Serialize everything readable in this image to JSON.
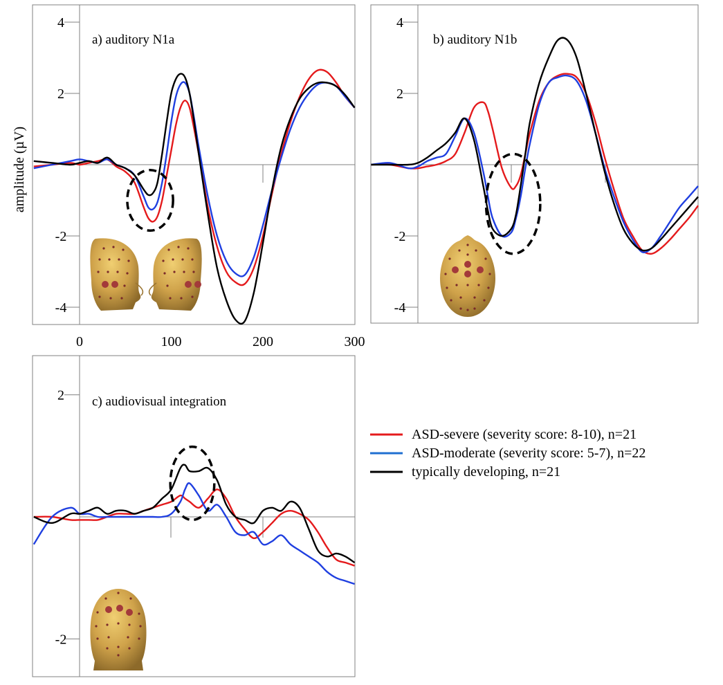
{
  "y_axis_label": "amplitude (µV)",
  "colors": {
    "severe": "#e41a1c",
    "moderate": "#1f3fe0",
    "typical": "#000000",
    "moderate_legend": "#1f6fd1"
  },
  "legend": {
    "items": [
      {
        "key": "severe",
        "label": "ASD-severe (severity score: 8-10), n=21"
      },
      {
        "key": "moderate",
        "label": "ASD-moderate (severity score: 5-7), n=22"
      },
      {
        "key": "typical",
        "label": "typically developing, n=21"
      }
    ]
  },
  "chart_data": [
    {
      "type": "line",
      "title": "a) auditory N1a",
      "xlabel": "",
      "ylabel": "amplitude (µV)",
      "xlim": [
        -50,
        300
      ],
      "ylim": [
        -4.5,
        4.5
      ],
      "yticks": [
        -4,
        -2,
        2,
        4
      ],
      "ytick_labels": [
        "-4",
        "-2",
        "2",
        "4"
      ],
      "xticks": [
        0,
        100,
        200,
        300
      ],
      "xtick_labels": [
        "0",
        "100",
        "200",
        "300"
      ],
      "highlight_ellipse": {
        "x": 77,
        "y": -1.0,
        "rx": 25,
        "ry": 0.85
      },
      "scalp_maps": [
        "left-lateral",
        "right-lateral"
      ],
      "series": [
        {
          "key": "severe",
          "x": [
            -50,
            -30,
            -10,
            0,
            10,
            20,
            30,
            40,
            50,
            60,
            70,
            75,
            80,
            85,
            90,
            95,
            100,
            105,
            110,
            115,
            120,
            125,
            130,
            140,
            150,
            160,
            170,
            180,
            190,
            200,
            210,
            220,
            230,
            240,
            250,
            260,
            270,
            280,
            290,
            300
          ],
          "y": [
            -0.05,
            0.0,
            0.05,
            0.0,
            0.05,
            0.1,
            0.15,
            -0.05,
            -0.2,
            -0.5,
            -1.2,
            -1.5,
            -1.6,
            -1.45,
            -1.0,
            -0.3,
            0.4,
            1.1,
            1.6,
            1.8,
            1.6,
            1.0,
            0.3,
            -1.2,
            -2.3,
            -3.0,
            -3.3,
            -3.35,
            -2.9,
            -2.0,
            -0.8,
            0.3,
            1.2,
            1.9,
            2.4,
            2.65,
            2.6,
            2.3,
            1.9,
            1.6
          ]
        },
        {
          "key": "moderate",
          "x": [
            -50,
            -30,
            -10,
            0,
            10,
            20,
            30,
            40,
            50,
            60,
            70,
            75,
            80,
            85,
            90,
            95,
            100,
            105,
            110,
            115,
            120,
            125,
            130,
            140,
            150,
            160,
            170,
            180,
            190,
            200,
            210,
            220,
            230,
            240,
            250,
            260,
            270,
            280,
            290,
            300
          ],
          "y": [
            -0.1,
            0.0,
            0.1,
            0.15,
            0.1,
            0.05,
            0.15,
            0.0,
            -0.1,
            -0.3,
            -0.9,
            -1.2,
            -1.25,
            -1.05,
            -0.5,
            0.3,
            1.2,
            1.9,
            2.25,
            2.3,
            2.0,
            1.3,
            0.5,
            -0.9,
            -2.0,
            -2.7,
            -3.05,
            -3.1,
            -2.6,
            -1.7,
            -0.7,
            0.2,
            1.0,
            1.6,
            2.0,
            2.25,
            2.3,
            2.2,
            1.9,
            1.6
          ]
        },
        {
          "key": "typical",
          "x": [
            -50,
            -30,
            -10,
            0,
            10,
            20,
            30,
            40,
            50,
            60,
            70,
            75,
            80,
            85,
            90,
            95,
            100,
            105,
            110,
            115,
            120,
            125,
            130,
            140,
            150,
            160,
            170,
            180,
            190,
            200,
            210,
            220,
            230,
            240,
            250,
            260,
            270,
            280,
            290,
            300
          ],
          "y": [
            0.1,
            0.05,
            0.0,
            0.05,
            0.1,
            0.05,
            0.2,
            0.0,
            -0.1,
            -0.3,
            -0.7,
            -0.85,
            -0.8,
            -0.5,
            0.3,
            1.2,
            2.0,
            2.4,
            2.55,
            2.45,
            2.0,
            1.2,
            0.3,
            -1.4,
            -2.9,
            -3.8,
            -4.35,
            -4.4,
            -3.6,
            -2.2,
            -0.7,
            0.5,
            1.3,
            1.85,
            2.15,
            2.3,
            2.3,
            2.2,
            1.95,
            1.6
          ]
        }
      ]
    },
    {
      "type": "line",
      "title": "b) auditory N1b",
      "xlabel": "",
      "ylabel": "",
      "xlim": [
        -50,
        300
      ],
      "ylim": [
        -4.5,
        4.5
      ],
      "yticks": [
        -4,
        -2,
        2,
        4
      ],
      "ytick_labels": [
        "-4",
        "-2",
        "2",
        "4"
      ],
      "xticks": [
        0,
        100,
        200
      ],
      "xtick_labels": [],
      "highlight_ellipse": {
        "x": 102,
        "y": -1.1,
        "rx": 29,
        "ry": 1.4
      },
      "scalp_maps": [
        "top-frontal"
      ],
      "series": [
        {
          "key": "severe",
          "x": [
            -50,
            -30,
            -10,
            0,
            10,
            20,
            30,
            40,
            50,
            60,
            70,
            75,
            80,
            90,
            100,
            105,
            110,
            115,
            120,
            130,
            140,
            150,
            160,
            170,
            180,
            190,
            200,
            210,
            220,
            230,
            240,
            250,
            260,
            270,
            280,
            290,
            300
          ],
          "y": [
            0.0,
            0.0,
            -0.1,
            -0.1,
            -0.05,
            0.0,
            0.1,
            0.3,
            0.9,
            1.6,
            1.75,
            1.5,
            1.0,
            -0.1,
            -0.65,
            -0.6,
            -0.3,
            0.3,
            0.9,
            1.8,
            2.3,
            2.5,
            2.55,
            2.45,
            2.0,
            1.2,
            0.2,
            -0.7,
            -1.5,
            -2.0,
            -2.4,
            -2.5,
            -2.35,
            -2.1,
            -1.8,
            -1.5,
            -1.15
          ]
        },
        {
          "key": "moderate",
          "x": [
            -50,
            -30,
            -10,
            0,
            10,
            20,
            30,
            40,
            50,
            60,
            70,
            75,
            80,
            90,
            100,
            105,
            110,
            115,
            120,
            130,
            140,
            150,
            160,
            170,
            180,
            190,
            200,
            210,
            220,
            230,
            240,
            250,
            260,
            270,
            280,
            290,
            300
          ],
          "y": [
            0.0,
            0.05,
            -0.1,
            -0.05,
            0.1,
            0.2,
            0.3,
            0.8,
            1.3,
            0.9,
            -0.2,
            -0.9,
            -1.5,
            -2.0,
            -1.9,
            -1.5,
            -0.9,
            -0.1,
            0.6,
            1.7,
            2.3,
            2.45,
            2.5,
            2.35,
            1.8,
            0.9,
            -0.1,
            -0.9,
            -1.6,
            -2.1,
            -2.45,
            -2.35,
            -2.0,
            -1.6,
            -1.2,
            -0.9,
            -0.6
          ]
        },
        {
          "key": "typical",
          "x": [
            -50,
            -30,
            -10,
            0,
            10,
            20,
            30,
            40,
            50,
            60,
            70,
            75,
            80,
            90,
            100,
            105,
            110,
            115,
            120,
            130,
            140,
            150,
            160,
            170,
            180,
            190,
            200,
            210,
            220,
            230,
            240,
            250,
            260,
            270,
            280,
            290,
            300
          ],
          "y": [
            0.0,
            0.0,
            0.0,
            0.05,
            0.2,
            0.4,
            0.6,
            0.9,
            1.3,
            0.7,
            -0.6,
            -1.3,
            -1.8,
            -2.0,
            -1.8,
            -1.4,
            -0.6,
            0.3,
            1.2,
            2.3,
            3.0,
            3.5,
            3.5,
            3.0,
            2.0,
            0.9,
            -0.2,
            -1.1,
            -1.8,
            -2.2,
            -2.4,
            -2.35,
            -2.1,
            -1.8,
            -1.5,
            -1.2,
            -0.9
          ]
        }
      ]
    },
    {
      "type": "line",
      "title": "c) audiovisual integration",
      "xlabel": "",
      "ylabel": "",
      "xlim": [
        -50,
        300
      ],
      "ylim": [
        -3.0,
        3.0
      ],
      "yticks": [
        -2,
        2
      ],
      "ytick_labels": [
        "-2",
        "2"
      ],
      "xticks": [
        0,
        100,
        200
      ],
      "xtick_labels": [],
      "highlight_ellipse": {
        "x": 123,
        "y": 0.55,
        "rx": 24,
        "ry": 0.6
      },
      "scalp_maps": [
        "back-occipital"
      ],
      "series": [
        {
          "key": "severe",
          "x": [
            -50,
            -30,
            -10,
            0,
            10,
            20,
            30,
            40,
            50,
            60,
            70,
            80,
            90,
            100,
            110,
            115,
            120,
            130,
            140,
            150,
            160,
            170,
            180,
            190,
            200,
            210,
            220,
            230,
            240,
            250,
            260,
            270,
            280,
            290,
            300
          ],
          "y": [
            0.0,
            0.0,
            -0.05,
            -0.05,
            -0.05,
            -0.05,
            0.0,
            0.05,
            0.05,
            0.05,
            0.1,
            0.15,
            0.2,
            0.25,
            0.35,
            0.3,
            0.25,
            0.15,
            0.3,
            0.45,
            0.3,
            0.0,
            -0.2,
            -0.35,
            -0.25,
            -0.1,
            0.05,
            0.1,
            0.05,
            -0.05,
            -0.25,
            -0.5,
            -0.7,
            -0.75,
            -0.8
          ]
        },
        {
          "key": "moderate",
          "x": [
            -50,
            -30,
            -10,
            0,
            10,
            20,
            30,
            40,
            50,
            60,
            70,
            80,
            90,
            100,
            110,
            115,
            120,
            130,
            140,
            150,
            160,
            170,
            180,
            190,
            200,
            210,
            220,
            230,
            240,
            250,
            260,
            270,
            280,
            290,
            300
          ],
          "y": [
            -0.45,
            0.0,
            0.15,
            0.05,
            0.05,
            0.0,
            0.0,
            0.0,
            0.0,
            0.0,
            0.0,
            0.0,
            0.0,
            0.05,
            0.25,
            0.45,
            0.55,
            0.35,
            0.1,
            0.2,
            0.0,
            -0.25,
            -0.3,
            -0.25,
            -0.45,
            -0.4,
            -0.3,
            -0.45,
            -0.55,
            -0.65,
            -0.75,
            -0.9,
            -1.0,
            -1.05,
            -1.1
          ]
        },
        {
          "key": "typical",
          "x": [
            -50,
            -30,
            -10,
            0,
            10,
            20,
            30,
            40,
            50,
            60,
            70,
            80,
            90,
            100,
            110,
            115,
            120,
            130,
            140,
            150,
            160,
            170,
            180,
            190,
            200,
            210,
            220,
            230,
            240,
            250,
            260,
            270,
            280,
            290,
            300
          ],
          "y": [
            0.0,
            -0.1,
            0.05,
            0.05,
            0.1,
            0.15,
            0.05,
            0.1,
            0.1,
            0.05,
            0.1,
            0.15,
            0.3,
            0.45,
            0.8,
            0.85,
            0.75,
            0.75,
            0.8,
            0.6,
            0.2,
            0.0,
            -0.05,
            -0.1,
            0.1,
            0.15,
            0.1,
            0.25,
            0.15,
            -0.2,
            -0.55,
            -0.65,
            -0.6,
            -0.65,
            -0.75
          ]
        }
      ]
    }
  ]
}
